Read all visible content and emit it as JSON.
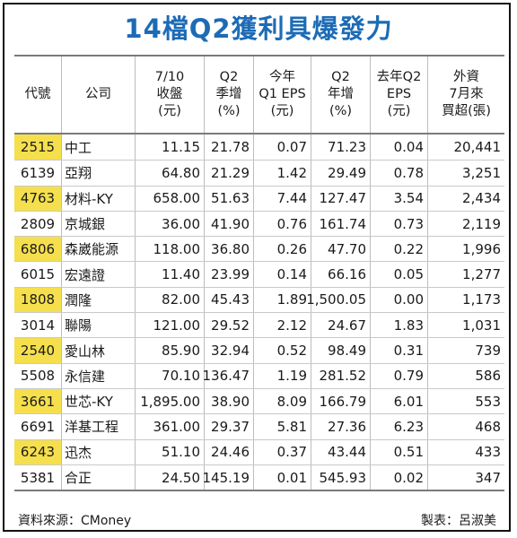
{
  "title": "14檔Q2獲利具爆發力",
  "columns": [
    "代號",
    "公司",
    "7/10\n收盤\n(元)",
    "Q2\n季增\n(%)",
    "今年\nQ1 EPS\n(元)",
    "Q2\n年增\n(%)",
    "去年Q2\nEPS\n(元)",
    "外資\n7月來\n買超(張)"
  ],
  "rows": [
    {
      "code": "2515",
      "name": "中工",
      "close": "11.15",
      "q2_qoq": "21.78",
      "q1_eps": "0.07",
      "q2_yoy": "71.23",
      "ly_q2_eps": "0.04",
      "foreign_buy": "20,441",
      "shaded": true
    },
    {
      "code": "6139",
      "name": "亞翔",
      "close": "64.80",
      "q2_qoq": "21.29",
      "q1_eps": "1.42",
      "q2_yoy": "29.49",
      "ly_q2_eps": "0.78",
      "foreign_buy": "3,251",
      "shaded": false
    },
    {
      "code": "4763",
      "name": "材料-KY",
      "close": "658.00",
      "q2_qoq": "51.63",
      "q1_eps": "7.44",
      "q2_yoy": "127.47",
      "ly_q2_eps": "3.54",
      "foreign_buy": "2,434",
      "shaded": true
    },
    {
      "code": "2809",
      "name": "京城銀",
      "close": "36.00",
      "q2_qoq": "41.90",
      "q1_eps": "0.76",
      "q2_yoy": "161.74",
      "ly_q2_eps": "0.73",
      "foreign_buy": "2,119",
      "shaded": false
    },
    {
      "code": "6806",
      "name": "森崴能源",
      "close": "118.00",
      "q2_qoq": "36.80",
      "q1_eps": "0.26",
      "q2_yoy": "47.70",
      "ly_q2_eps": "0.22",
      "foreign_buy": "1,996",
      "shaded": true
    },
    {
      "code": "6015",
      "name": "宏遠證",
      "close": "11.40",
      "q2_qoq": "23.99",
      "q1_eps": "0.14",
      "q2_yoy": "66.16",
      "ly_q2_eps": "0.05",
      "foreign_buy": "1,277",
      "shaded": false
    },
    {
      "code": "1808",
      "name": "潤隆",
      "close": "82.00",
      "q2_qoq": "45.43",
      "q1_eps": "1.89",
      "q2_yoy": "1,500.05",
      "ly_q2_eps": "0.00",
      "foreign_buy": "1,173",
      "shaded": true
    },
    {
      "code": "3014",
      "name": "聯陽",
      "close": "121.00",
      "q2_qoq": "29.52",
      "q1_eps": "2.12",
      "q2_yoy": "24.67",
      "ly_q2_eps": "1.83",
      "foreign_buy": "1,031",
      "shaded": false
    },
    {
      "code": "2540",
      "name": "愛山林",
      "close": "85.90",
      "q2_qoq": "32.94",
      "q1_eps": "0.52",
      "q2_yoy": "98.49",
      "ly_q2_eps": "0.31",
      "foreign_buy": "739",
      "shaded": true
    },
    {
      "code": "5508",
      "name": "永信建",
      "close": "70.10",
      "q2_qoq": "136.47",
      "q1_eps": "1.19",
      "q2_yoy": "281.52",
      "ly_q2_eps": "0.79",
      "foreign_buy": "586",
      "shaded": false
    },
    {
      "code": "3661",
      "name": "世芯-KY",
      "close": "1,895.00",
      "q2_qoq": "38.90",
      "q1_eps": "8.09",
      "q2_yoy": "166.79",
      "ly_q2_eps": "6.01",
      "foreign_buy": "553",
      "shaded": true
    },
    {
      "code": "6691",
      "name": "洋基工程",
      "close": "361.00",
      "q2_qoq": "29.37",
      "q1_eps": "5.81",
      "q2_yoy": "27.36",
      "ly_q2_eps": "6.23",
      "foreign_buy": "468",
      "shaded": false
    },
    {
      "code": "6243",
      "name": "迅杰",
      "close": "51.10",
      "q2_qoq": "24.46",
      "q1_eps": "0.37",
      "q2_yoy": "43.44",
      "ly_q2_eps": "0.51",
      "foreign_buy": "433",
      "shaded": true
    },
    {
      "code": "5381",
      "name": "合正",
      "close": "24.50",
      "q2_qoq": "145.19",
      "q1_eps": "0.01",
      "q2_yoy": "545.93",
      "ly_q2_eps": "0.02",
      "foreign_buy": "347",
      "shaded": false
    }
  ],
  "source": "資料來源：CMoney",
  "credit": "製表：呂淑美",
  "colors": {
    "title": "#1d6bb6",
    "highlight": "#f5df4d"
  }
}
